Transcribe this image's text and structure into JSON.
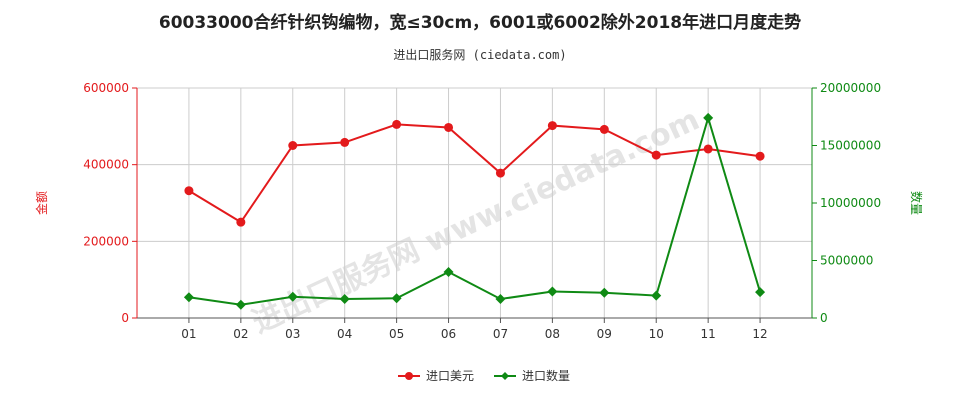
{
  "title": "60033000合纤针织钩编物，宽≤30cm，6001或6002除外2018年进口月度走势",
  "subtitle": "进出口服务网 (ciedata.com)",
  "watermark": "进出口服务网 www.ciedata.com",
  "colors": {
    "usd": "#e31a1c",
    "qty": "#0f8a14",
    "grid": "#cccccc",
    "axis": "#555555"
  },
  "chart_data": {
    "type": "line",
    "categories": [
      "01",
      "02",
      "03",
      "04",
      "05",
      "06",
      "07",
      "08",
      "09",
      "10",
      "11",
      "12"
    ],
    "y_left": {
      "label": "金额",
      "range": [
        0,
        600000
      ],
      "ticks": [
        {
          "value": 0,
          "label": "0"
        },
        {
          "value": 200000,
          "label": "200000"
        },
        {
          "value": 400000,
          "label": "400000"
        },
        {
          "value": 600000,
          "label": "600000"
        }
      ]
    },
    "y_right": {
      "label": "数量",
      "range": [
        0,
        20000000
      ],
      "ticks": [
        {
          "value": 0,
          "label": "0"
        },
        {
          "value": 5000000,
          "label": "5000000"
        },
        {
          "value": 10000000,
          "label": "10000000"
        },
        {
          "value": 15000000,
          "label": "15000000"
        },
        {
          "value": 20000000,
          "label": "20000000"
        }
      ]
    },
    "series": [
      {
        "name": "进口美元",
        "axis": "left",
        "color": "#e31a1c",
        "marker": "circle",
        "values": [
          332000,
          250000,
          450000,
          458000,
          505000,
          497000,
          378000,
          502000,
          492000,
          425000,
          441000,
          422000
        ]
      },
      {
        "name": "进口数量",
        "axis": "right",
        "color": "#0f8a14",
        "marker": "diamond",
        "values": [
          1800000,
          1150000,
          1850000,
          1650000,
          1720000,
          4000000,
          1650000,
          2300000,
          2200000,
          1950000,
          17400000,
          2250000
        ]
      }
    ],
    "grid": true,
    "legend": "bottom"
  }
}
